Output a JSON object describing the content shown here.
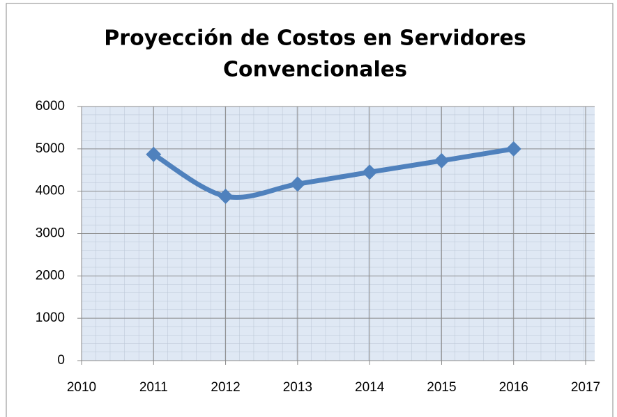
{
  "chart_data": {
    "type": "line",
    "title": [
      "Proyección de Costos en Servidores",
      "Convencionales"
    ],
    "x": [
      2011,
      2012,
      2013,
      2014,
      2015,
      2016
    ],
    "values": [
      4870,
      3880,
      4170,
      4450,
      4720,
      5000
    ],
    "color": "#4f81bd",
    "smooth": true,
    "xlim": [
      2010,
      2017
    ],
    "xticks": [
      2010,
      2011,
      2012,
      2013,
      2014,
      2015,
      2016,
      2017
    ],
    "ylim": [
      0,
      6000
    ],
    "yticks": [
      0,
      1000,
      2000,
      3000,
      4000,
      5000,
      6000
    ],
    "grid": true
  }
}
